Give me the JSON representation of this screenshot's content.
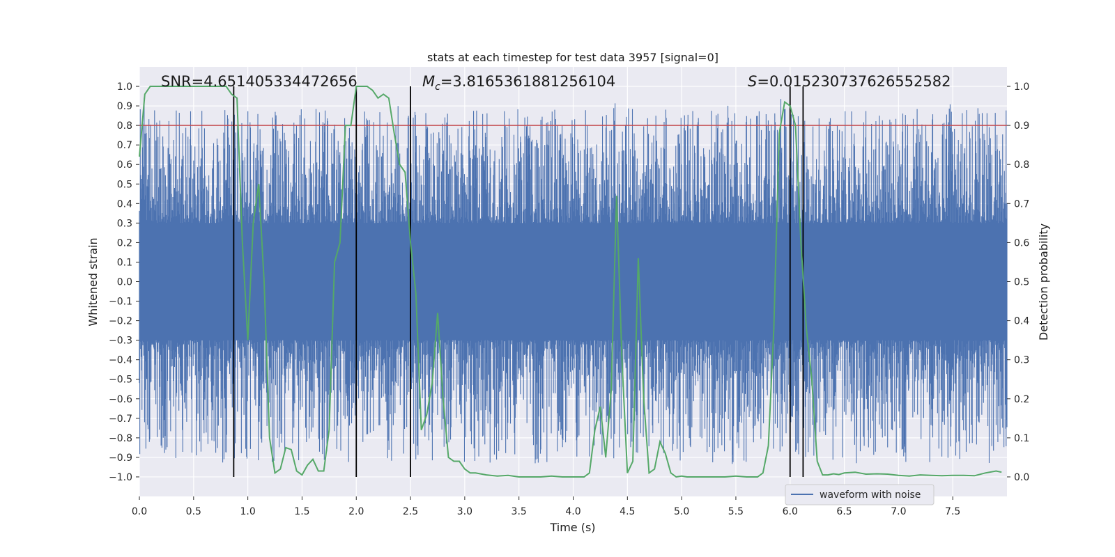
{
  "chart_data": {
    "type": "line",
    "title": "stats at each timestep for test data 3957 [signal=0]",
    "xlabel": "Time (s)",
    "ylabel": "Whitened strain",
    "y2label": "Detection probability",
    "xlim": [
      0.0,
      8.0
    ],
    "ylim": [
      -1.1,
      1.1
    ],
    "y2lim": [
      -0.05,
      1.05
    ],
    "xticks": [
      "0.0",
      "0.5",
      "1.0",
      "1.5",
      "2.0",
      "2.5",
      "3.0",
      "3.5",
      "4.0",
      "4.5",
      "5.0",
      "5.5",
      "6.0",
      "6.5",
      "7.0",
      "7.5"
    ],
    "yticks": [
      "1.0",
      "0.9",
      "0.8",
      "0.7",
      "0.6",
      "0.5",
      "0.4",
      "0.3",
      "0.2",
      "0.1",
      "0.0",
      "−0.1",
      "−0.2",
      "−0.3",
      "−0.4",
      "−0.5",
      "−0.6",
      "−0.7",
      "−0.8",
      "−0.9",
      "−1.0"
    ],
    "y2ticks": [
      "1.0",
      "0.9",
      "0.8",
      "0.7",
      "0.6",
      "0.5",
      "0.4",
      "0.3",
      "0.2",
      "0.1",
      "0.0"
    ],
    "grid": true,
    "legend_position": "lower-right",
    "annotations": {
      "snr": "SNR=4.651405334472656",
      "mc_symbol": "M",
      "mc_sub": "c",
      "mc_value": "=3.8165361881256104",
      "s_symbol": "S",
      "s_value": "=0.015230737626552582"
    },
    "threshold": {
      "y2": 0.9,
      "color": "#c44e52"
    },
    "vertical_lines_x": [
      0.87,
      2.0,
      2.5,
      6.0,
      6.12
    ],
    "series": [
      {
        "name": "waveform with noise",
        "axis": "left",
        "color": "#4c72b0",
        "kind": "noise",
        "envelope": {
          "core": 0.3,
          "max_pos": 0.95,
          "max_neg": -1.0,
          "samples": 2000
        }
      },
      {
        "axis": "right",
        "color": "#55a868",
        "x": [
          0.0,
          0.05,
          0.1,
          0.2,
          0.3,
          0.4,
          0.5,
          0.6,
          0.7,
          0.8,
          0.85,
          0.9,
          0.95,
          1.0,
          1.05,
          1.1,
          1.15,
          1.2,
          1.25,
          1.3,
          1.35,
          1.4,
          1.45,
          1.5,
          1.55,
          1.6,
          1.65,
          1.7,
          1.75,
          1.8,
          1.85,
          1.9,
          1.95,
          2.0,
          2.05,
          2.1,
          2.15,
          2.2,
          2.25,
          2.3,
          2.35,
          2.4,
          2.45,
          2.5,
          2.55,
          2.6,
          2.65,
          2.7,
          2.75,
          2.8,
          2.85,
          2.9,
          2.95,
          3.0,
          3.05,
          3.1,
          3.2,
          3.3,
          3.4,
          3.5,
          3.6,
          3.7,
          3.8,
          3.9,
          4.0,
          4.1,
          4.15,
          4.2,
          4.25,
          4.3,
          4.35,
          4.4,
          4.45,
          4.5,
          4.55,
          4.6,
          4.65,
          4.7,
          4.75,
          4.8,
          4.85,
          4.9,
          4.95,
          5.0,
          5.05,
          5.1,
          5.2,
          5.3,
          5.4,
          5.5,
          5.6,
          5.7,
          5.75,
          5.8,
          5.85,
          5.9,
          5.95,
          6.0,
          6.05,
          6.1,
          6.15,
          6.2,
          6.25,
          6.3,
          6.35,
          6.4,
          6.45,
          6.5,
          6.6,
          6.7,
          6.8,
          6.9,
          7.0,
          7.1,
          7.2,
          7.3,
          7.4,
          7.5,
          7.6,
          7.7,
          7.8,
          7.9,
          7.95
        ],
        "values": [
          0.82,
          0.98,
          1.0,
          1.0,
          1.0,
          1.0,
          1.0,
          1.0,
          1.0,
          1.0,
          0.98,
          0.97,
          0.6,
          0.35,
          0.65,
          0.75,
          0.5,
          0.1,
          0.01,
          0.02,
          0.075,
          0.07,
          0.015,
          0.005,
          0.03,
          0.045,
          0.015,
          0.015,
          0.12,
          0.55,
          0.6,
          0.9,
          0.9,
          1.0,
          1.0,
          1.0,
          0.99,
          0.97,
          0.98,
          0.97,
          0.88,
          0.8,
          0.78,
          0.6,
          0.47,
          0.12,
          0.16,
          0.24,
          0.42,
          0.2,
          0.05,
          0.04,
          0.04,
          0.02,
          0.01,
          0.01,
          0.005,
          0.002,
          0.004,
          0.0,
          0.0,
          0.0,
          0.002,
          0.0,
          0.0,
          0.0,
          0.01,
          0.12,
          0.18,
          0.05,
          0.22,
          0.72,
          0.3,
          0.01,
          0.04,
          0.56,
          0.2,
          0.01,
          0.02,
          0.09,
          0.06,
          0.01,
          0.0,
          0.002,
          0.0,
          0.0,
          0.0,
          0.0,
          0.0,
          0.002,
          0.0,
          0.0,
          0.01,
          0.08,
          0.38,
          0.88,
          0.96,
          0.95,
          0.9,
          0.6,
          0.38,
          0.25,
          0.04,
          0.005,
          0.005,
          0.008,
          0.006,
          0.01,
          0.012,
          0.007,
          0.008,
          0.007,
          0.004,
          0.002,
          0.005,
          0.004,
          0.003,
          0.004,
          0.004,
          0.003,
          0.01,
          0.015,
          0.012
        ]
      }
    ]
  }
}
